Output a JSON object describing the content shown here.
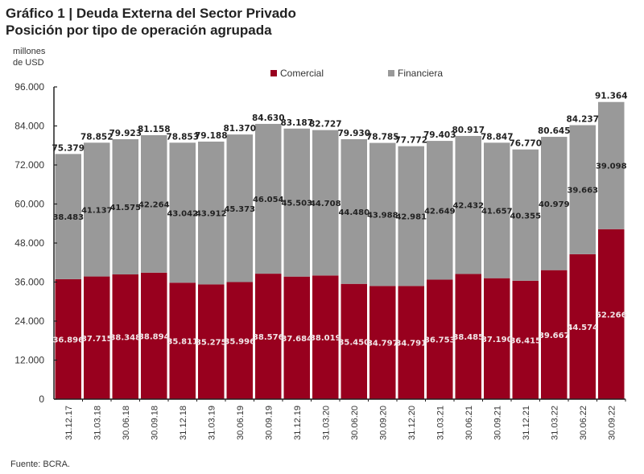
{
  "header": {
    "title_line1": "Gráfico 1 | Deuda Externa del Sector Privado",
    "title_line2": "Posición por tipo de operación agrupada",
    "units_line1": "millones",
    "units_line2": "de USD"
  },
  "footer": {
    "source": "Fuente: BCRA."
  },
  "colors": {
    "comercial": "#98001e",
    "financiera": "#999999",
    "axis": "#222222"
  },
  "chart_data": {
    "type": "bar",
    "stacked": true,
    "title": "Deuda Externa del Sector Privado - Posición por tipo de operación agrupada",
    "xlabel": "",
    "ylabel": "millones de USD",
    "ylim": [
      0,
      96000
    ],
    "yticks": [
      0,
      12000,
      24000,
      36000,
      48000,
      60000,
      72000,
      84000,
      96000
    ],
    "ytick_labels": [
      "0",
      "12.000",
      "24.000",
      "36.000",
      "48.000",
      "60.000",
      "72.000",
      "84.000",
      "96.000"
    ],
    "grid": false,
    "legend_position": "top-center",
    "categories": [
      "31.12.17",
      "31.03.18",
      "30.06.18",
      "30.09.18",
      "31.12.18",
      "31.03.19",
      "30.06.19",
      "30.09.19",
      "31.12.19",
      "31.03.20",
      "30.06.20",
      "30.09.20",
      "31.12.20",
      "31.03.21",
      "30.06.21",
      "30.09.21",
      "31.12.21",
      "31.03.22",
      "30.06.22",
      "30.09.22"
    ],
    "series": [
      {
        "name": "Comercial",
        "color": "#98001e",
        "values": [
          36896,
          37715,
          38348,
          38894,
          35811,
          35275,
          35996,
          38576,
          37684,
          38019,
          35450,
          34797,
          34791,
          36753,
          38485,
          37190,
          36415,
          39667,
          44574,
          52266
        ],
        "labels": [
          "36.896",
          "37.715",
          "38.348",
          "38.894",
          "35.811",
          "35.275",
          "35.996",
          "38.576",
          "37.684",
          "38.019",
          "35.450",
          "34.797",
          "34.791",
          "36.753",
          "38.485",
          "37.190",
          "36.415",
          "39.667",
          "44.574",
          "52.266"
        ]
      },
      {
        "name": "Financiera",
        "color": "#999999",
        "values": [
          38483,
          41137,
          41575,
          42264,
          43042,
          43912,
          45373,
          46054,
          45503,
          44708,
          44480,
          43988,
          42981,
          42649,
          42432,
          41657,
          40355,
          40979,
          39663,
          39098
        ],
        "labels": [
          "38.483",
          "41.137",
          "41.575",
          "42.264",
          "43.042",
          "43.912",
          "45.373",
          "46.054",
          "45.503",
          "44.708",
          "44.480",
          "43.988",
          "42.981",
          "42.649",
          "42.432",
          "41.657",
          "40.355",
          "40.979",
          "39.663",
          "39.098"
        ]
      }
    ],
    "totals": [
      75379,
      78852,
      79923,
      81158,
      78853,
      79188,
      81370,
      84630,
      83187,
      82727,
      79930,
      78785,
      77772,
      79403,
      80917,
      78847,
      76770,
      80645,
      84237,
      91364
    ],
    "total_labels": [
      "75.379",
      "78.852",
      "79.923",
      "81.158",
      "78.853",
      "79.188",
      "81.370",
      "84.630",
      "83.187",
      "82.727",
      "79.930",
      "78.785",
      "77.772",
      "79.403",
      "80.917",
      "78.847",
      "76.770",
      "80.645",
      "84.237",
      "91.364"
    ]
  }
}
